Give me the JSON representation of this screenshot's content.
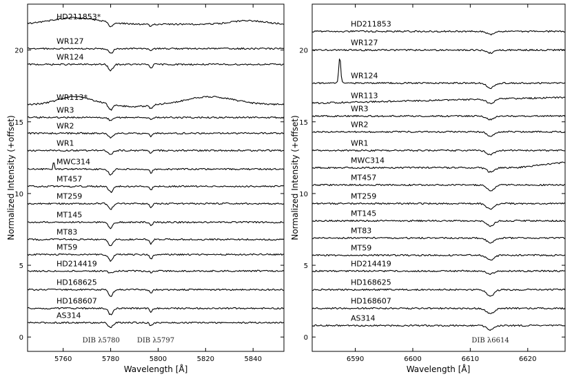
{
  "figure": {
    "ylabel": "Normalized Intensity (+offset)",
    "xlabel": "Wavelength [Å]"
  },
  "chart_data": [
    {
      "type": "line",
      "panel": "left",
      "xlabel": "Wavelength [Å]",
      "ylabel": "Normalized Intensity (+offset)",
      "xlim": [
        5745,
        5853
      ],
      "ylim": [
        -1.0,
        23.2
      ],
      "xticks": [
        5760,
        5780,
        5800,
        5820,
        5840
      ],
      "yticks": [
        0,
        5,
        10,
        15,
        20
      ],
      "annotations": [
        {
          "text": "DIB λ5780",
          "x": 5776
        },
        {
          "text": "DIB λ5797",
          "x": 5799
        }
      ],
      "dibs": [
        5780,
        5797
      ],
      "series": [
        {
          "name": "AS314",
          "offset": 1.0,
          "depths": [
            0.35,
            0.22
          ]
        },
        {
          "name": "HD168607",
          "offset": 2.0,
          "depths": [
            0.45,
            0.25
          ]
        },
        {
          "name": "HD168625",
          "offset": 3.3,
          "depths": [
            0.45,
            0.25
          ]
        },
        {
          "name": "HD214419",
          "offset": 4.6,
          "depths": [
            0.15,
            0.1
          ]
        },
        {
          "name": "MT59",
          "offset": 5.75,
          "depths": [
            0.45,
            0.3
          ]
        },
        {
          "name": "MT83",
          "offset": 6.8,
          "depths": [
            0.45,
            0.3
          ]
        },
        {
          "name": "MT145",
          "offset": 8.0,
          "depths": [
            0.4,
            0.25
          ]
        },
        {
          "name": "MT259",
          "offset": 9.3,
          "depths": [
            0.4,
            0.25
          ]
        },
        {
          "name": "MT457",
          "offset": 10.5,
          "depths": [
            0.4,
            0.25
          ]
        },
        {
          "name": "MWC314",
          "offset": 11.7,
          "depths": [
            0.4,
            0.25
          ],
          "emission": {
            "x": 5756,
            "h": 0.9
          }
        },
        {
          "name": "WR1",
          "offset": 13.0,
          "depths": [
            0.3,
            0.2
          ]
        },
        {
          "name": "WR2",
          "offset": 14.2,
          "depths": [
            0.3,
            0.2
          ]
        },
        {
          "name": "WR3",
          "offset": 15.3,
          "depths": [
            0.2,
            0.15
          ]
        },
        {
          "name": "WR113*",
          "offset": 16.2,
          "depths": [
            0.4,
            0.25
          ],
          "note": "broad emission humps"
        },
        {
          "name": "WR124",
          "offset": 19.0,
          "depths": [
            0.45,
            0.25
          ]
        },
        {
          "name": "WR127",
          "offset": 20.1,
          "depths": [
            0.35,
            0.2
          ]
        },
        {
          "name": "HD211853*",
          "offset": 21.8,
          "depths": [
            0.3,
            0.15
          ],
          "note": "broad emission hump"
        }
      ]
    },
    {
      "type": "line",
      "panel": "right",
      "xlabel": "Wavelength [Å]",
      "ylabel": "Normalized Intensity (+offset)",
      "xlim": [
        6582.5,
        6626.5
      ],
      "ylim": [
        -1.0,
        23.2
      ],
      "xticks": [
        6590,
        6600,
        6610,
        6620
      ],
      "yticks": [
        0,
        5,
        10,
        15,
        20
      ],
      "annotations": [
        {
          "text": "DIB λ6614",
          "x": 6613.5
        }
      ],
      "dibs": [
        6613.5
      ],
      "series": [
        {
          "name": "AS314",
          "offset": 0.8,
          "depth": 0.3
        },
        {
          "name": "HD168607",
          "offset": 2.0,
          "depth": 0.4
        },
        {
          "name": "HD168625",
          "offset": 3.3,
          "depth": 0.45
        },
        {
          "name": "HD214419",
          "offset": 4.6,
          "depth": 0.2
        },
        {
          "name": "MT59",
          "offset": 5.7,
          "depth": 0.35
        },
        {
          "name": "MT83",
          "offset": 6.9,
          "depth": 0.35
        },
        {
          "name": "MT145",
          "offset": 8.1,
          "depth": 0.35
        },
        {
          "name": "MT259",
          "offset": 9.3,
          "depth": 0.4
        },
        {
          "name": "MT457",
          "offset": 10.6,
          "depth": 0.4
        },
        {
          "name": "MWC314",
          "offset": 11.8,
          "depth": 0.3
        },
        {
          "name": "WR1",
          "offset": 13.0,
          "depth": 0.3
        },
        {
          "name": "WR2",
          "offset": 14.3,
          "depth": 0.3
        },
        {
          "name": "WR3",
          "offset": 15.4,
          "depth": 0.25
        },
        {
          "name": "WR113",
          "offset": 16.3,
          "depth": 0.3
        },
        {
          "name": "WR124",
          "offset": 17.7,
          "depth": 0.35,
          "emission": {
            "x": 6587.3,
            "h": 1.8
          }
        },
        {
          "name": "WR127",
          "offset": 20.0,
          "depth": 0.2
        },
        {
          "name": "HD211853",
          "offset": 21.3,
          "depth": 0.2
        }
      ]
    }
  ]
}
